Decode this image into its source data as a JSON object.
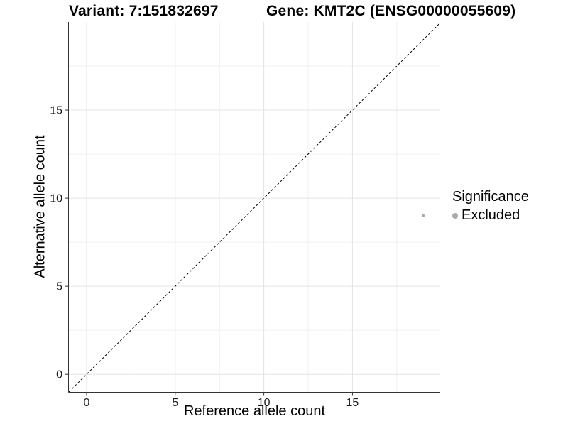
{
  "chart_data": {
    "type": "scatter",
    "title_parts": [
      "Variant: 7:151832697",
      "Gene: KMT2C (ENSG00000055609)"
    ],
    "xlabel": "Reference allele count",
    "ylabel": "Alternative allele count",
    "xlim": [
      -1,
      19.95
    ],
    "ylim": [
      -1,
      20
    ],
    "x_ticks": [
      0,
      5,
      10,
      15
    ],
    "y_ticks": [
      0,
      5,
      10,
      15
    ],
    "x_minor_ticks": [
      2.5,
      7.5,
      12.5,
      17.5
    ],
    "y_minor_ticks": [
      2.5,
      7.5,
      12.5,
      17.5
    ],
    "grid": true,
    "legend_title": "Significance",
    "legend_position": "right-center",
    "identity_line": {
      "style": "dashed",
      "slope": 1,
      "intercept": 0,
      "color": "#000000"
    },
    "series": [
      {
        "name": "Excluded",
        "color": "#a9a9a9",
        "points": [
          {
            "x": 19,
            "y": 9
          }
        ],
        "point_radius": 2
      }
    ]
  },
  "style": {
    "grid_major": "#e4e4e4",
    "grid_minor": "#f0f0f0",
    "axis_line": "#333333",
    "tick_mark": "#333333",
    "tick_label": "#1a1a1a",
    "background": "#ffffff"
  }
}
